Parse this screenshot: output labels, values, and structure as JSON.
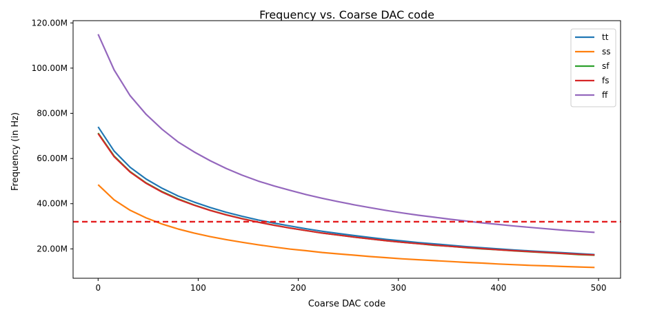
{
  "chart_data": {
    "type": "line",
    "title": "Frequency vs. Coarse DAC code",
    "xlabel": "Coarse DAC code",
    "ylabel": "Frequency (in Hz)",
    "xlim": [
      -25,
      522
    ],
    "ylim": [
      7000000,
      121000000
    ],
    "xticks": [
      0,
      100,
      200,
      300,
      400,
      500
    ],
    "xtick_labels": [
      "0",
      "100",
      "200",
      "300",
      "400",
      "500"
    ],
    "yticks": [
      20000000,
      40000000,
      60000000,
      80000000,
      100000000,
      120000000
    ],
    "ytick_labels": [
      "20.00M",
      "40.00M",
      "60.00M",
      "80.00M",
      "100.00M",
      "120.00M"
    ],
    "legend_position": "top-right",
    "reference_line": {
      "y": 32000000,
      "color": "#e31a1c",
      "style": "dashed"
    },
    "x": [
      0,
      16,
      32,
      48,
      64,
      80,
      96,
      112,
      128,
      144,
      160,
      176,
      192,
      208,
      224,
      240,
      256,
      272,
      288,
      304,
      320,
      336,
      352,
      368,
      384,
      400,
      416,
      432,
      448,
      464,
      480,
      496
    ],
    "series": [
      {
        "name": "tt",
        "color": "#1f77b4",
        "values": [
          74000000,
          63300000,
          56100000,
          50900000,
          46800000,
          43400000,
          40700000,
          38300000,
          36200000,
          34400000,
          32800000,
          31400000,
          30100000,
          28900000,
          27800000,
          26800000,
          25900000,
          25000000,
          24200000,
          23500000,
          22800000,
          22200000,
          21600000,
          21000000,
          20500000,
          20000000,
          19500000,
          19100000,
          18700000,
          18300000,
          17900000,
          17500000
        ]
      },
      {
        "name": "ss",
        "color": "#ff7f0e",
        "values": [
          48400000,
          41700000,
          37100000,
          33700000,
          31000000,
          28800000,
          27000000,
          25400000,
          24100000,
          22900000,
          21800000,
          20800000,
          19900000,
          19200000,
          18400000,
          17800000,
          17200000,
          16600000,
          16100000,
          15600000,
          15200000,
          14800000,
          14400000,
          14000000,
          13700000,
          13300000,
          13000000,
          12700000,
          12500000,
          12200000,
          12000000,
          11800000
        ]
      },
      {
        "name": "sf",
        "color": "#2ca02c",
        "values": [
          71300000,
          61100000,
          54200000,
          49200000,
          45300000,
          42100000,
          39400000,
          37100000,
          35100000,
          33400000,
          31800000,
          30500000,
          29200000,
          28100000,
          27000000,
          26100000,
          25200000,
          24400000,
          23600000,
          22900000,
          22300000,
          21600000,
          21100000,
          20500000,
          20000000,
          19600000,
          19100000,
          18700000,
          18300000,
          17900000,
          17500000,
          17200000
        ]
      },
      {
        "name": "fs",
        "color": "#d62728",
        "values": [
          71000000,
          60800000,
          54000000,
          49000000,
          45100000,
          41900000,
          39300000,
          37000000,
          35000000,
          33300000,
          31800000,
          30400000,
          29200000,
          28100000,
          27000000,
          26100000,
          25200000,
          24400000,
          23600000,
          22900000,
          22300000,
          21700000,
          21100000,
          20600000,
          20100000,
          19600000,
          19200000,
          18800000,
          18400000,
          18000000,
          17600000,
          17300000
        ]
      },
      {
        "name": "ff",
        "color": "#9467bd",
        "values": [
          115000000,
          99200000,
          87800000,
          79500000,
          72900000,
          67300000,
          62900000,
          59000000,
          55600000,
          52600000,
          50000000,
          47800000,
          45900000,
          44000000,
          42400000,
          40900000,
          39500000,
          38200000,
          37000000,
          35900000,
          34900000,
          34000000,
          33100000,
          32300000,
          31500000,
          30800000,
          30100000,
          29500000,
          28900000,
          28300000,
          27800000,
          27300000
        ]
      }
    ]
  }
}
